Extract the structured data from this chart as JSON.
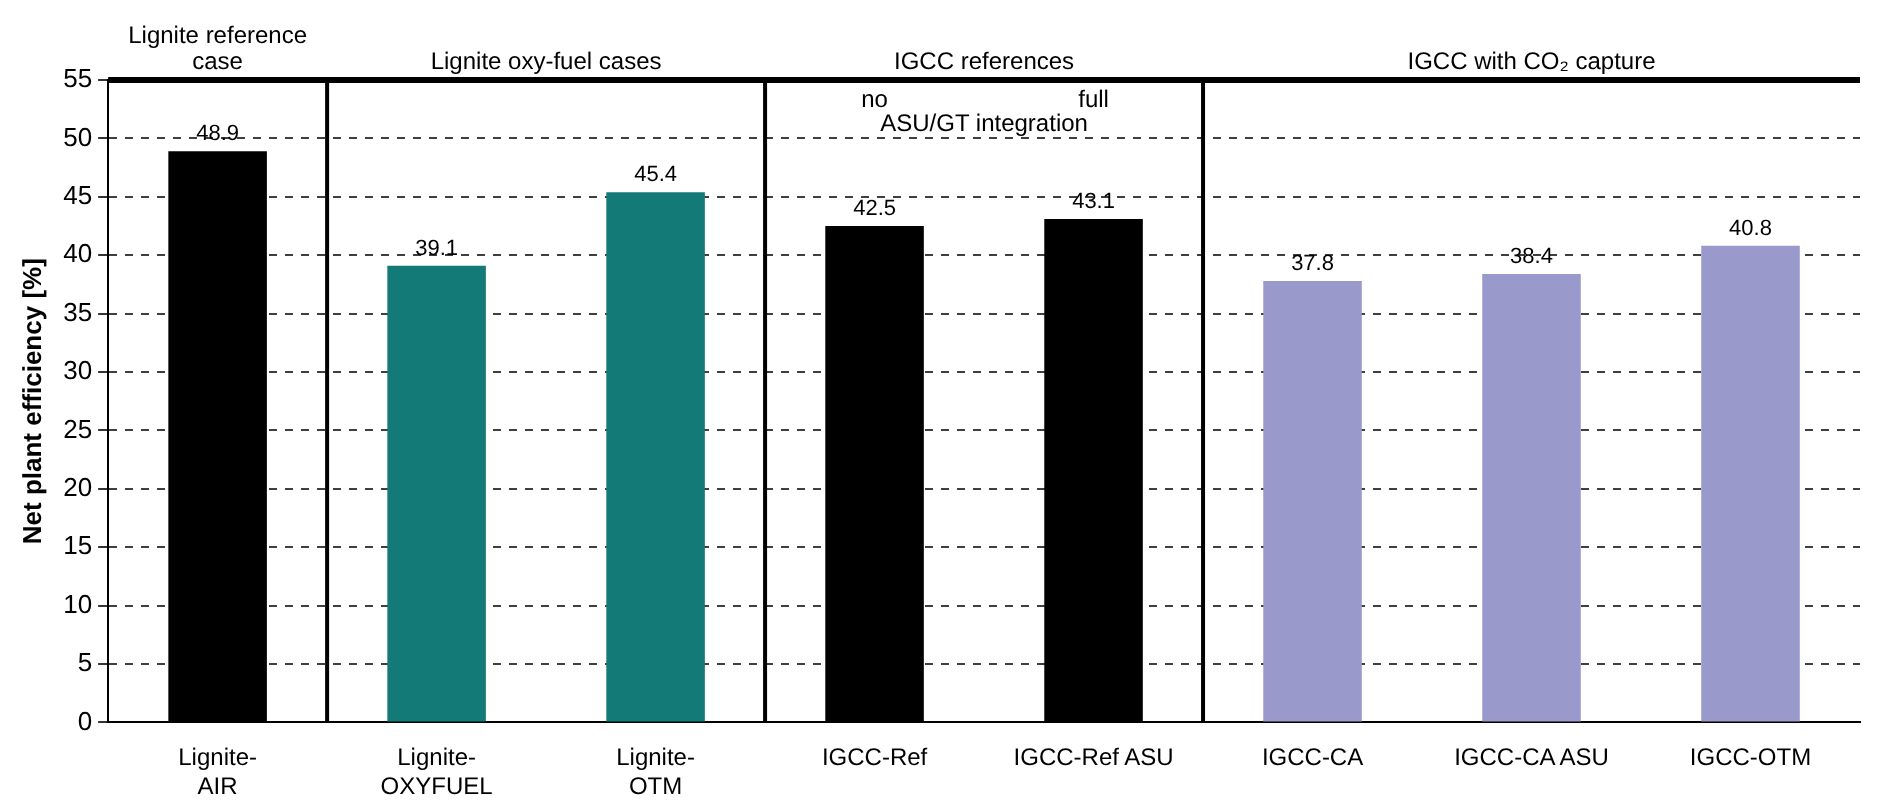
{
  "chart_data": {
    "type": "bar",
    "ylabel": "Net plant efficiency [%]",
    "categories": [
      "Lignite-AIR",
      "Lignite-OXYFUEL",
      "Lignite-OTM",
      "IGCC-Ref",
      "IGCC-Ref ASU",
      "IGCC-CA",
      "IGCC-CA ASU",
      "IGCC-OTM"
    ],
    "values": [
      48.9,
      39.1,
      45.4,
      42.5,
      43.1,
      37.8,
      38.4,
      40.8
    ],
    "colors": [
      "#000000",
      "#137a78",
      "#137a78",
      "#000000",
      "#000000",
      "#9999cc",
      "#9999cc",
      "#9999cc"
    ],
    "ylim": [
      0,
      55
    ],
    "yticks": [
      0,
      5,
      10,
      15,
      20,
      25,
      30,
      35,
      40,
      45,
      50,
      55
    ],
    "grid": "y",
    "legend": false,
    "data_labels": true,
    "annotations": [
      "Lignite reference case",
      "Lignite oxy-fuel cases",
      "IGCC references",
      "IGCC with CO₂ capture",
      "no",
      "full",
      "ASU/GT integration"
    ]
  }
}
